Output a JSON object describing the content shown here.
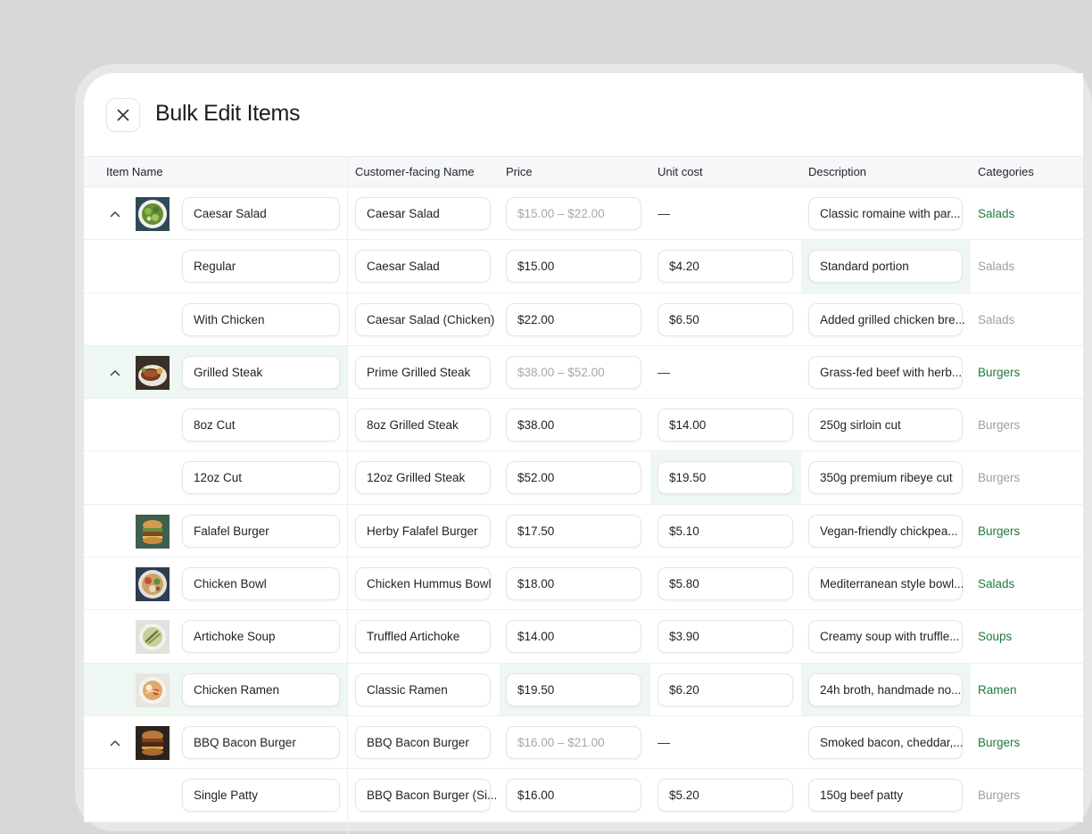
{
  "title": "Bulk Edit Items",
  "columns": {
    "item_name": "Item Name",
    "customer_name": "Customer-facing Name",
    "price": "Price",
    "unit_cost": "Unit cost",
    "description": "Description",
    "categories": "Categories"
  },
  "colors": {
    "category_active": "#1f7a3d",
    "category_inactive": "#9aa0a6",
    "highlight": "#eef7f1"
  },
  "rows": [
    {
      "kind": "parent",
      "item": "Caesar Salad",
      "thumb": "salad",
      "name": "Caesar Salad",
      "price": "$15.00 – $22.00",
      "cost": "—",
      "desc": "Classic romaine with par...",
      "cat": "Salads"
    },
    {
      "kind": "child",
      "item": "Regular",
      "name": "Caesar Salad",
      "price": "$15.00",
      "cost": "$4.20",
      "desc": "Standard portion",
      "cat": "Salads"
    },
    {
      "kind": "child",
      "item": "With Chicken",
      "name": "Caesar Salad (Chicken)",
      "price": "$22.00",
      "cost": "$6.50",
      "desc": "Added grilled chicken bre...",
      "cat": "Salads"
    },
    {
      "kind": "parent",
      "item": "Grilled Steak",
      "thumb": "steak",
      "name": "Prime Grilled Steak",
      "price": "$38.00 – $52.00",
      "cost": "—",
      "desc": "Grass-fed beef with herb...",
      "cat": "Burgers"
    },
    {
      "kind": "child",
      "item": "8oz Cut",
      "name": "8oz Grilled Steak",
      "price": "$38.00",
      "cost": "$14.00",
      "desc": "250g sirloin cut",
      "cat": "Burgers"
    },
    {
      "kind": "child",
      "item": "12oz Cut",
      "name": "12oz Grilled Steak",
      "price": "$52.00",
      "cost": "$19.50",
      "desc": "350g premium ribeye cut",
      "cat": "Burgers"
    },
    {
      "kind": "single",
      "item": "Falafel Burger",
      "thumb": "burger",
      "name": "Herby Falafel Burger",
      "price": "$17.50",
      "cost": "$5.10",
      "desc": "Vegan-friendly chickpea...",
      "cat": "Burgers"
    },
    {
      "kind": "single",
      "item": "Chicken Bowl",
      "thumb": "bowl",
      "name": "Chicken Hummus Bowl",
      "price": "$18.00",
      "cost": "$5.80",
      "desc": "Mediterranean style bowl...",
      "cat": "Salads"
    },
    {
      "kind": "single",
      "item": "Artichoke Soup",
      "thumb": "soup",
      "name": "Truffled Artichoke",
      "price": "$14.00",
      "cost": "$3.90",
      "desc": "Creamy soup with truffle...",
      "cat": "Soups"
    },
    {
      "kind": "single",
      "item": "Chicken Ramen",
      "thumb": "ramen",
      "name": "Classic Ramen",
      "price": "$19.50",
      "cost": "$6.20",
      "desc": "24h broth, handmade no...",
      "cat": "Ramen"
    },
    {
      "kind": "parent",
      "item": "BBQ Bacon Burger",
      "thumb": "bbq",
      "name": "BBQ Bacon Burger",
      "price": "$16.00 – $21.00",
      "cost": "—",
      "desc": "Smoked bacon, cheddar,...",
      "cat": "Burgers"
    },
    {
      "kind": "child",
      "item": "Single Patty",
      "name": "BBQ Bacon Burger (Si...",
      "price": "$16.00",
      "cost": "$5.20",
      "desc": "150g beef patty",
      "cat": "Burgers"
    }
  ]
}
